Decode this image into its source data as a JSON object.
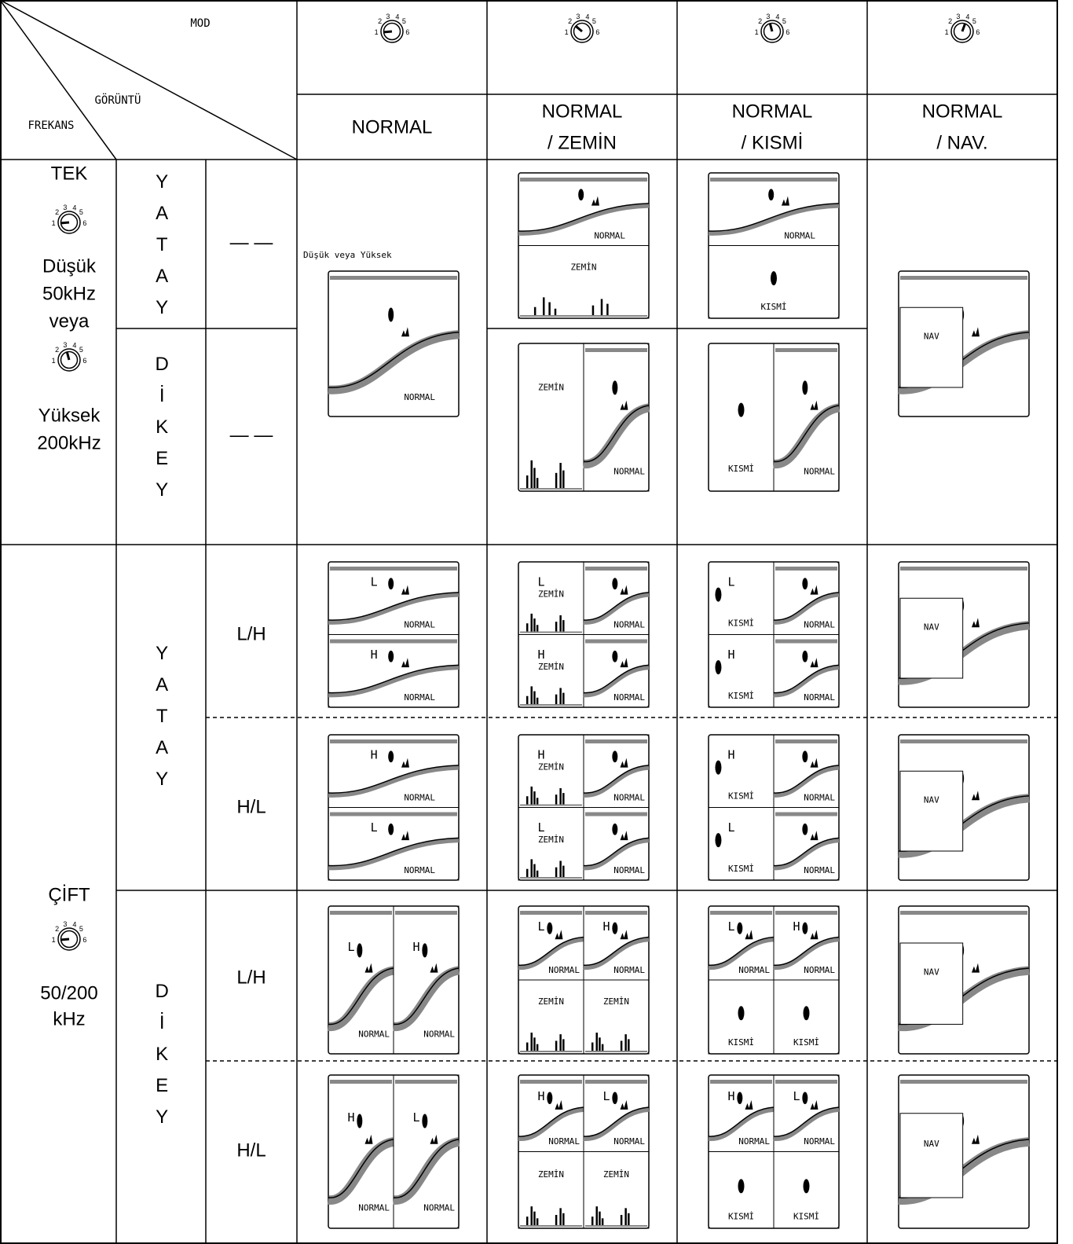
{
  "header": {
    "mode": "MOD",
    "view": "GÖRÜNTÜ",
    "frequency": "FREKANS",
    "dial_labels": [
      "1",
      "2",
      "3",
      "4",
      "5",
      "6"
    ],
    "modes": [
      [
        "NORMAL"
      ],
      [
        "NORMAL",
        "/ ZEMİN"
      ],
      [
        "NORMAL",
        "/ KISMİ"
      ],
      [
        "NORMAL",
        "/ NAV."
      ]
    ]
  },
  "single": {
    "label": "TEK",
    "low": "Düşük",
    "low_freq": "50kHz",
    "or": "veya",
    "high": "Yüksek",
    "high_freq": "200kHz",
    "horizontal": "YATAY",
    "vertical": "DİKEY",
    "none": "— —",
    "caption": "Düşük veya Yüksek",
    "screens": [
      [
        [
          "NORMAL"
        ]
      ],
      [
        [
          "NORMAL"
        ],
        [
          "ZEMİN"
        ]
      ],
      [
        [
          "ZEMİN"
        ],
        [
          "NORMAL"
        ]
      ],
      [
        [
          "NORMAL"
        ],
        [
          "KISMİ"
        ]
      ],
      [
        [
          "KISMİ"
        ],
        [
          "NORMAL"
        ]
      ],
      [
        [
          "NAV"
        ]
      ]
    ]
  },
  "dual": {
    "label": "ÇİFT",
    "freq": "50/200",
    "unit": "kHz",
    "horizontal": "YATAY",
    "vertical": "DİKEY",
    "rows": [
      {
        "order": "L/H",
        "screens": [
          [
            [
              "L",
              "NORMAL"
            ],
            [
              "H",
              "NORMAL"
            ]
          ],
          [
            [
              "L",
              "ZEMİN"
            ],
            [
              "NORMAL"
            ],
            [
              "H",
              "ZEMİN"
            ],
            [
              "NORMAL"
            ]
          ],
          [
            [
              "L",
              "KISMİ"
            ],
            [
              "NORMAL"
            ],
            [
              "H",
              "KISMİ"
            ],
            [
              "NORMAL"
            ]
          ],
          [
            [
              "NAV"
            ]
          ]
        ]
      },
      {
        "order": "H/L",
        "screens": [
          [
            [
              "H",
              "NORMAL"
            ],
            [
              "L",
              "NORMAL"
            ]
          ],
          [
            [
              "H",
              "ZEMİN"
            ],
            [
              "NORMAL"
            ],
            [
              "L",
              "ZEMİN"
            ],
            [
              "NORMAL"
            ]
          ],
          [
            [
              "H",
              "KISMİ"
            ],
            [
              "NORMAL"
            ],
            [
              "L",
              "KISMİ"
            ],
            [
              "NORMAL"
            ]
          ],
          [
            [
              "NAV"
            ]
          ]
        ]
      },
      {
        "order": "L/H",
        "screens": [
          [
            [
              "L",
              "NORMAL"
            ],
            [
              "H",
              "NORMAL"
            ]
          ],
          [
            [
              "L",
              "NORMAL"
            ],
            [
              "H",
              "NORMAL"
            ],
            [
              "ZEMİN"
            ],
            [
              "ZEMİN"
            ]
          ],
          [
            [
              "L",
              "NORMAL"
            ],
            [
              "H",
              "NORMAL"
            ],
            [
              "KISMİ"
            ],
            [
              "KISMİ"
            ]
          ],
          [
            [
              "NAV"
            ]
          ]
        ]
      },
      {
        "order": "H/L",
        "screens": [
          [
            [
              "H",
              "NORMAL"
            ],
            [
              "L",
              "NORMAL"
            ]
          ],
          [
            [
              "H",
              "NORMAL"
            ],
            [
              "L",
              "NORMAL"
            ],
            [
              "ZEMİN"
            ],
            [
              "ZEMİN"
            ]
          ],
          [
            [
              "H",
              "NORMAL"
            ],
            [
              "L",
              "NORMAL"
            ],
            [
              "KISMİ"
            ],
            [
              "KISMİ"
            ]
          ],
          [
            [
              "NAV"
            ]
          ]
        ]
      }
    ]
  }
}
